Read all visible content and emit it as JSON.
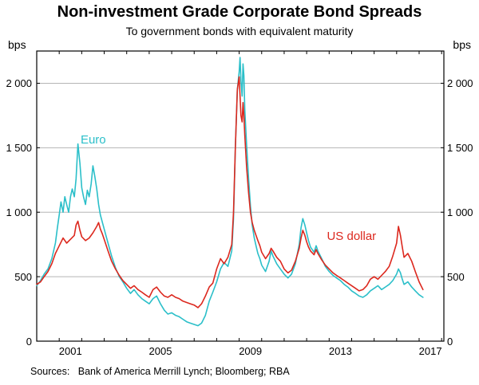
{
  "header": {
    "title": "Non-investment Grade Corporate Bond Spreads",
    "subtitle": "To government bonds with equivalent maturity"
  },
  "axes": {
    "unit_left": "bps",
    "unit_right": "bps",
    "y_ticks": [
      {
        "value": 0,
        "label": "0"
      },
      {
        "value": 500,
        "label": "500"
      },
      {
        "value": 1000,
        "label": "1 000"
      },
      {
        "value": 1500,
        "label": "1 500"
      },
      {
        "value": 2000,
        "label": "2 000"
      }
    ],
    "x_ticks": [
      {
        "year": 2001,
        "label": "2001"
      },
      {
        "year": 2005,
        "label": "2005"
      },
      {
        "year": 2009,
        "label": "2009"
      },
      {
        "year": 2013,
        "label": "2013"
      },
      {
        "year": 2017,
        "label": "2017"
      }
    ]
  },
  "footer": {
    "sources": "Sources:   Bank of America Merrill Lynch; Bloomberg; RBA"
  },
  "colors": {
    "euro": "#2bbfc9",
    "us_dollar": "#dc281e",
    "grid": "#b5b5b5",
    "frame": "#000000"
  },
  "chart_data": {
    "type": "line",
    "title": "Non-investment Grade Corporate Bond Spreads",
    "subtitle": "To government bonds with equivalent maturity",
    "ylabel": "bps",
    "ylim": [
      0,
      2250
    ],
    "xlim": [
      2000,
      2018.1
    ],
    "grid": "horizontal",
    "legend_position": "inline-annotations",
    "annotations": [
      {
        "text": "Euro",
        "x": 2001.95,
        "y": 1560,
        "color": "#2bbfc9"
      },
      {
        "text": "US dollar",
        "x": 2012.9,
        "y": 810,
        "color": "#dc281e"
      }
    ],
    "series": [
      {
        "name": "Euro",
        "color": "#2bbfc9",
        "points": [
          [
            2000.0,
            430
          ],
          [
            2000.17,
            470
          ],
          [
            2000.33,
            520
          ],
          [
            2000.5,
            560
          ],
          [
            2000.67,
            640
          ],
          [
            2000.83,
            760
          ],
          [
            2000.92,
            880
          ],
          [
            2001.0,
            980
          ],
          [
            2001.08,
            1080
          ],
          [
            2001.17,
            1000
          ],
          [
            2001.25,
            1120
          ],
          [
            2001.33,
            1060
          ],
          [
            2001.42,
            1000
          ],
          [
            2001.5,
            1120
          ],
          [
            2001.58,
            1180
          ],
          [
            2001.67,
            1120
          ],
          [
            2001.75,
            1260
          ],
          [
            2001.83,
            1530
          ],
          [
            2001.92,
            1380
          ],
          [
            2002.0,
            1190
          ],
          [
            2002.08,
            1120
          ],
          [
            2002.17,
            1060
          ],
          [
            2002.25,
            1170
          ],
          [
            2002.33,
            1120
          ],
          [
            2002.42,
            1220
          ],
          [
            2002.5,
            1360
          ],
          [
            2002.58,
            1280
          ],
          [
            2002.67,
            1180
          ],
          [
            2002.75,
            1060
          ],
          [
            2002.83,
            980
          ],
          [
            2002.92,
            920
          ],
          [
            2003.0,
            870
          ],
          [
            2003.17,
            760
          ],
          [
            2003.33,
            660
          ],
          [
            2003.5,
            570
          ],
          [
            2003.67,
            500
          ],
          [
            2003.83,
            460
          ],
          [
            2004.0,
            410
          ],
          [
            2004.17,
            370
          ],
          [
            2004.33,
            400
          ],
          [
            2004.5,
            360
          ],
          [
            2004.67,
            330
          ],
          [
            2004.83,
            310
          ],
          [
            2005.0,
            290
          ],
          [
            2005.17,
            330
          ],
          [
            2005.33,
            350
          ],
          [
            2005.5,
            290
          ],
          [
            2005.67,
            240
          ],
          [
            2005.83,
            210
          ],
          [
            2006.0,
            220
          ],
          [
            2006.17,
            200
          ],
          [
            2006.33,
            190
          ],
          [
            2006.5,
            170
          ],
          [
            2006.67,
            150
          ],
          [
            2006.83,
            140
          ],
          [
            2007.0,
            130
          ],
          [
            2007.17,
            120
          ],
          [
            2007.33,
            140
          ],
          [
            2007.5,
            200
          ],
          [
            2007.67,
            310
          ],
          [
            2007.83,
            380
          ],
          [
            2008.0,
            460
          ],
          [
            2008.17,
            560
          ],
          [
            2008.33,
            610
          ],
          [
            2008.5,
            580
          ],
          [
            2008.67,
            700
          ],
          [
            2008.75,
            950
          ],
          [
            2008.83,
            1500
          ],
          [
            2008.92,
            1950
          ],
          [
            2009.0,
            2090
          ],
          [
            2009.04,
            2200
          ],
          [
            2009.08,
            2020
          ],
          [
            2009.13,
            1900
          ],
          [
            2009.17,
            2150
          ],
          [
            2009.21,
            2060
          ],
          [
            2009.25,
            1800
          ],
          [
            2009.33,
            1520
          ],
          [
            2009.42,
            1260
          ],
          [
            2009.5,
            1050
          ],
          [
            2009.58,
            900
          ],
          [
            2009.67,
            800
          ],
          [
            2009.75,
            740
          ],
          [
            2009.83,
            680
          ],
          [
            2009.92,
            640
          ],
          [
            2010.0,
            590
          ],
          [
            2010.17,
            540
          ],
          [
            2010.33,
            620
          ],
          [
            2010.42,
            700
          ],
          [
            2010.5,
            660
          ],
          [
            2010.67,
            600
          ],
          [
            2010.83,
            560
          ],
          [
            2011.0,
            520
          ],
          [
            2011.17,
            490
          ],
          [
            2011.33,
            520
          ],
          [
            2011.5,
            600
          ],
          [
            2011.67,
            750
          ],
          [
            2011.75,
            880
          ],
          [
            2011.83,
            950
          ],
          [
            2011.92,
            900
          ],
          [
            2012.0,
            840
          ],
          [
            2012.08,
            780
          ],
          [
            2012.17,
            730
          ],
          [
            2012.33,
            690
          ],
          [
            2012.42,
            740
          ],
          [
            2012.5,
            700
          ],
          [
            2012.67,
            640
          ],
          [
            2012.83,
            580
          ],
          [
            2013.0,
            540
          ],
          [
            2013.17,
            510
          ],
          [
            2013.33,
            490
          ],
          [
            2013.5,
            470
          ],
          [
            2013.67,
            440
          ],
          [
            2013.83,
            420
          ],
          [
            2014.0,
            390
          ],
          [
            2014.17,
            370
          ],
          [
            2014.33,
            350
          ],
          [
            2014.5,
            340
          ],
          [
            2014.67,
            360
          ],
          [
            2014.83,
            390
          ],
          [
            2015.0,
            410
          ],
          [
            2015.17,
            430
          ],
          [
            2015.33,
            400
          ],
          [
            2015.5,
            420
          ],
          [
            2015.67,
            440
          ],
          [
            2015.83,
            470
          ],
          [
            2016.0,
            520
          ],
          [
            2016.08,
            560
          ],
          [
            2016.17,
            530
          ],
          [
            2016.25,
            480
          ],
          [
            2016.33,
            440
          ],
          [
            2016.5,
            460
          ],
          [
            2016.67,
            420
          ],
          [
            2016.83,
            390
          ],
          [
            2017.0,
            360
          ],
          [
            2017.17,
            340
          ]
        ]
      },
      {
        "name": "US dollar",
        "color": "#dc281e",
        "points": [
          [
            2000.0,
            440
          ],
          [
            2000.17,
            460
          ],
          [
            2000.33,
            500
          ],
          [
            2000.5,
            540
          ],
          [
            2000.67,
            600
          ],
          [
            2000.83,
            680
          ],
          [
            2001.0,
            740
          ],
          [
            2001.17,
            800
          ],
          [
            2001.33,
            760
          ],
          [
            2001.5,
            790
          ],
          [
            2001.67,
            820
          ],
          [
            2001.75,
            900
          ],
          [
            2001.83,
            930
          ],
          [
            2001.92,
            860
          ],
          [
            2002.0,
            810
          ],
          [
            2002.17,
            780
          ],
          [
            2002.33,
            800
          ],
          [
            2002.5,
            840
          ],
          [
            2002.67,
            890
          ],
          [
            2002.75,
            920
          ],
          [
            2002.83,
            870
          ],
          [
            2002.92,
            830
          ],
          [
            2003.0,
            790
          ],
          [
            2003.17,
            700
          ],
          [
            2003.33,
            620
          ],
          [
            2003.5,
            560
          ],
          [
            2003.67,
            510
          ],
          [
            2003.83,
            470
          ],
          [
            2004.0,
            440
          ],
          [
            2004.17,
            410
          ],
          [
            2004.33,
            430
          ],
          [
            2004.5,
            400
          ],
          [
            2004.67,
            380
          ],
          [
            2004.83,
            360
          ],
          [
            2005.0,
            340
          ],
          [
            2005.17,
            400
          ],
          [
            2005.33,
            420
          ],
          [
            2005.5,
            380
          ],
          [
            2005.67,
            350
          ],
          [
            2005.83,
            340
          ],
          [
            2006.0,
            360
          ],
          [
            2006.17,
            340
          ],
          [
            2006.33,
            330
          ],
          [
            2006.5,
            310
          ],
          [
            2006.67,
            300
          ],
          [
            2006.83,
            290
          ],
          [
            2007.0,
            280
          ],
          [
            2007.17,
            260
          ],
          [
            2007.33,
            290
          ],
          [
            2007.5,
            350
          ],
          [
            2007.67,
            420
          ],
          [
            2007.83,
            450
          ],
          [
            2008.0,
            560
          ],
          [
            2008.17,
            640
          ],
          [
            2008.33,
            600
          ],
          [
            2008.5,
            650
          ],
          [
            2008.67,
            750
          ],
          [
            2008.75,
            1000
          ],
          [
            2008.83,
            1500
          ],
          [
            2008.92,
            1950
          ],
          [
            2009.0,
            2050
          ],
          [
            2009.04,
            1900
          ],
          [
            2009.08,
            1750
          ],
          [
            2009.13,
            1700
          ],
          [
            2009.17,
            1850
          ],
          [
            2009.21,
            1750
          ],
          [
            2009.25,
            1600
          ],
          [
            2009.33,
            1350
          ],
          [
            2009.42,
            1150
          ],
          [
            2009.5,
            1000
          ],
          [
            2009.58,
            920
          ],
          [
            2009.67,
            860
          ],
          [
            2009.75,
            820
          ],
          [
            2009.83,
            780
          ],
          [
            2009.92,
            740
          ],
          [
            2010.0,
            690
          ],
          [
            2010.17,
            640
          ],
          [
            2010.33,
            680
          ],
          [
            2010.42,
            720
          ],
          [
            2010.5,
            700
          ],
          [
            2010.67,
            650
          ],
          [
            2010.83,
            620
          ],
          [
            2011.0,
            560
          ],
          [
            2011.17,
            530
          ],
          [
            2011.33,
            550
          ],
          [
            2011.5,
            620
          ],
          [
            2011.67,
            720
          ],
          [
            2011.75,
            800
          ],
          [
            2011.83,
            860
          ],
          [
            2011.92,
            820
          ],
          [
            2012.0,
            770
          ],
          [
            2012.08,
            730
          ],
          [
            2012.17,
            700
          ],
          [
            2012.33,
            670
          ],
          [
            2012.42,
            710
          ],
          [
            2012.5,
            680
          ],
          [
            2012.67,
            630
          ],
          [
            2012.83,
            590
          ],
          [
            2013.0,
            560
          ],
          [
            2013.17,
            530
          ],
          [
            2013.33,
            510
          ],
          [
            2013.5,
            490
          ],
          [
            2013.67,
            470
          ],
          [
            2013.83,
            450
          ],
          [
            2014.0,
            430
          ],
          [
            2014.17,
            410
          ],
          [
            2014.33,
            390
          ],
          [
            2014.5,
            400
          ],
          [
            2014.67,
            430
          ],
          [
            2014.83,
            480
          ],
          [
            2015.0,
            500
          ],
          [
            2015.17,
            480
          ],
          [
            2015.33,
            510
          ],
          [
            2015.5,
            540
          ],
          [
            2015.67,
            580
          ],
          [
            2015.83,
            660
          ],
          [
            2016.0,
            760
          ],
          [
            2016.08,
            890
          ],
          [
            2016.17,
            820
          ],
          [
            2016.25,
            730
          ],
          [
            2016.33,
            650
          ],
          [
            2016.5,
            680
          ],
          [
            2016.67,
            620
          ],
          [
            2016.83,
            540
          ],
          [
            2017.0,
            460
          ],
          [
            2017.17,
            400
          ]
        ]
      }
    ]
  }
}
